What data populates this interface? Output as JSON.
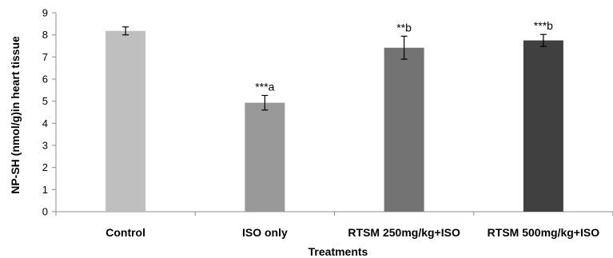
{
  "chart_data": {
    "type": "bar",
    "title": "",
    "xlabel": "Treatments",
    "ylabel": "NP-SH (nmol/g)in heart  tissue",
    "ylim": [
      0,
      9
    ],
    "yticks": [
      "0",
      "1",
      "2",
      "3",
      "4",
      "5",
      "6",
      "7",
      "8",
      "9"
    ],
    "grid": false,
    "categories": [
      "Control",
      "ISO only",
      "RTSM 250mg/kg+ISO",
      "RTSM 500mg/kg+ISO"
    ],
    "values": [
      8.18,
      4.93,
      7.42,
      7.75
    ],
    "errors": [
      0.18,
      0.33,
      0.52,
      0.27
    ],
    "annotations": [
      "",
      "***a",
      "**b",
      "***b"
    ],
    "colors": [
      "#bfbfbf",
      "#999999",
      "#737373",
      "#404040"
    ]
  }
}
